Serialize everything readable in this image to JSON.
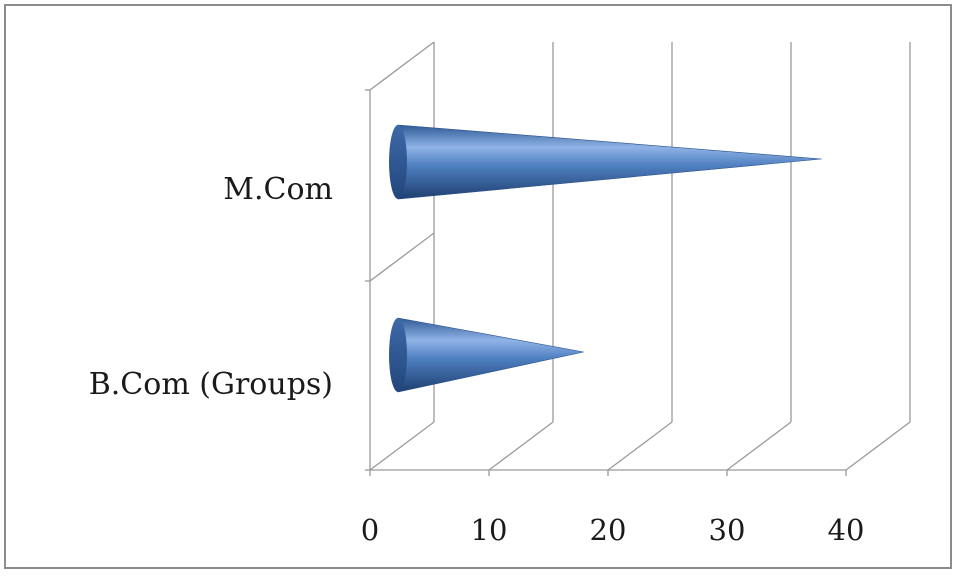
{
  "chart_data": {
    "type": "bar",
    "bar_shape": "3d-cone",
    "orientation": "horizontal",
    "categories": [
      "B.Com (Groups)",
      "M.Com"
    ],
    "values": [
      15,
      35
    ],
    "xlim": [
      0,
      40
    ],
    "x_ticks": [
      0,
      10,
      20,
      30,
      40
    ],
    "title": "",
    "xlabel": "",
    "ylabel": "",
    "grid": true,
    "legend": "none",
    "bar_color": "#4a78b8"
  }
}
